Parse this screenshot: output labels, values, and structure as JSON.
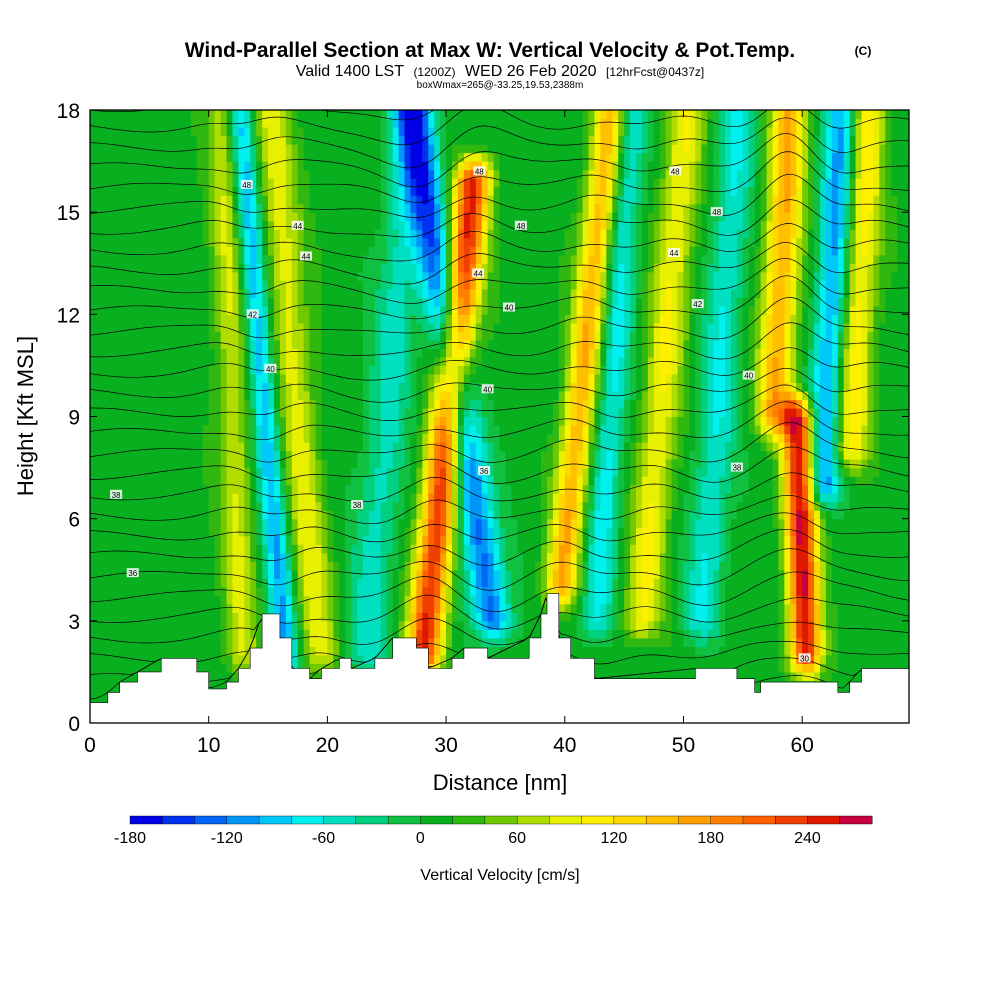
{
  "header": {
    "title": "Wind-Parallel Section at Max W: Vertical Velocity & Pot.Temp.",
    "copyright": "(C)",
    "valid_prefix": "Valid 1400 LST",
    "utc": "(1200Z)",
    "valid_date": "WED 26 Feb 2020",
    "forecast": "[12hrFcst@0437z]",
    "boxinfo": "boxWmax=265@-33.25,19.53,2388m"
  },
  "chart_data": {
    "type": "heatmap",
    "title": "Wind-Parallel Section at Max W: Vertical Velocity & Pot.Temp.",
    "xlabel": "Distance [nm]",
    "ylabel": "Height [Kft MSL]",
    "xlim": [
      0,
      69
    ],
    "ylim": [
      0,
      18
    ],
    "xticks": [
      0,
      10,
      20,
      30,
      40,
      50,
      60
    ],
    "yticks": [
      0,
      3,
      6,
      9,
      12,
      15,
      18
    ],
    "colorbar": {
      "label": "Vertical Velocity [cm/s]",
      "min": -180,
      "max": 280,
      "step": 20,
      "tick_values": [
        -180,
        -120,
        -60,
        0,
        60,
        120,
        180,
        240
      ],
      "colors": [
        "#0000e6",
        "#0030f0",
        "#0064f6",
        "#0096f8",
        "#00c8fa",
        "#00f0f0",
        "#00e0c0",
        "#00d080",
        "#10c040",
        "#08b020",
        "#30b810",
        "#70c800",
        "#b0dc00",
        "#e6f000",
        "#fff000",
        "#ffd800",
        "#ffc000",
        "#ffa000",
        "#ff8000",
        "#ff6000",
        "#f04000",
        "#e01800",
        "#c80040"
      ]
    },
    "wave_bands": [
      {
        "kind": "up",
        "x_base": 12.5,
        "tilt": -0.1,
        "width": 1.4,
        "amp": 70,
        "h_min": 2,
        "h_max": 18
      },
      {
        "kind": "down",
        "x_base": 15.8,
        "tilt": -0.25,
        "width": 1.1,
        "amp": -110,
        "h_min": 1.8,
        "h_max": 18
      },
      {
        "kind": "up",
        "x_base": 18.5,
        "tilt": -0.25,
        "width": 1.6,
        "amp": 80,
        "h_min": 2,
        "h_max": 18
      },
      {
        "kind": "down",
        "x_base": 24,
        "tilt": 0.25,
        "width": 1.8,
        "amp": -60,
        "h_min": 2,
        "h_max": 18
      },
      {
        "kind": "up",
        "x_base": 29,
        "tilt": 0.3,
        "width": 1.5,
        "amp": 230,
        "h_min": 2,
        "h_max": 16
      },
      {
        "kind": "down",
        "x_base": 33,
        "tilt": -0.45,
        "width": 1.6,
        "amp": -140,
        "h_min": 3,
        "h_max": 18
      },
      {
        "kind": "up",
        "x_base": 40,
        "tilt": 0.3,
        "width": 1.4,
        "amp": 150,
        "h_min": 4,
        "h_max": 18
      },
      {
        "kind": "down",
        "x_base": 43,
        "tilt": 0.2,
        "width": 1.4,
        "amp": -80,
        "h_min": 3,
        "h_max": 18
      },
      {
        "kind": "up",
        "x_base": 47,
        "tilt": 0.25,
        "width": 1.6,
        "amp": 90,
        "h_min": 3,
        "h_max": 18
      },
      {
        "kind": "down",
        "x_base": 52,
        "tilt": 0.2,
        "width": 1.6,
        "amp": -70,
        "h_min": 3,
        "h_max": 18
      },
      {
        "kind": "up",
        "x_base": 60,
        "tilt": -0.1,
        "width": 1.3,
        "amp": 250,
        "h_min": 2,
        "h_max": 9
      },
      {
        "kind": "up",
        "x_base": 57,
        "tilt": 0.15,
        "width": 1.5,
        "amp": 150,
        "h_min": 9,
        "h_max": 18
      },
      {
        "kind": "down",
        "x_base": 61.5,
        "tilt": 0.15,
        "width": 1.4,
        "amp": -130,
        "h_min": 7,
        "h_max": 18
      },
      {
        "kind": "up",
        "x_base": 63.5,
        "tilt": 0.15,
        "width": 1.6,
        "amp": 110,
        "h_min": 8,
        "h_max": 18
      }
    ],
    "terrain": [
      {
        "x": 0,
        "h": 0.6
      },
      {
        "x": 1.5,
        "h": 0.9
      },
      {
        "x": 2.5,
        "h": 1.2
      },
      {
        "x": 4,
        "h": 1.5
      },
      {
        "x": 6,
        "h": 1.9
      },
      {
        "x": 9,
        "h": 1.5
      },
      {
        "x": 10,
        "h": 1.0
      },
      {
        "x": 11.5,
        "h": 1.2
      },
      {
        "x": 12.5,
        "h": 1.6
      },
      {
        "x": 13.5,
        "h": 2.2
      },
      {
        "x": 14.5,
        "h": 3.2
      },
      {
        "x": 16,
        "h": 2.5
      },
      {
        "x": 17,
        "h": 1.6
      },
      {
        "x": 18.5,
        "h": 1.3
      },
      {
        "x": 19.5,
        "h": 1.6
      },
      {
        "x": 21,
        "h": 1.9
      },
      {
        "x": 22,
        "h": 1.6
      },
      {
        "x": 24,
        "h": 1.9
      },
      {
        "x": 25.5,
        "h": 2.5
      },
      {
        "x": 27.5,
        "h": 2.2
      },
      {
        "x": 28.5,
        "h": 1.6
      },
      {
        "x": 30.5,
        "h": 1.9
      },
      {
        "x": 31.5,
        "h": 2.2
      },
      {
        "x": 33.5,
        "h": 1.9
      },
      {
        "x": 37,
        "h": 2.5
      },
      {
        "x": 38,
        "h": 3.2
      },
      {
        "x": 38.5,
        "h": 3.8
      },
      {
        "x": 39.5,
        "h": 2.5
      },
      {
        "x": 40.5,
        "h": 1.9
      },
      {
        "x": 42.5,
        "h": 1.3
      },
      {
        "x": 51,
        "h": 1.6
      },
      {
        "x": 54.5,
        "h": 1.3
      },
      {
        "x": 56,
        "h": 0.9
      },
      {
        "x": 56.5,
        "h": 1.2
      },
      {
        "x": 63,
        "h": 0.9
      },
      {
        "x": 64,
        "h": 1.2
      },
      {
        "x": 65,
        "h": 1.6
      },
      {
        "x": 69,
        "h": 1.6
      }
    ],
    "theta_labels": [
      {
        "text": "48",
        "x": 13.2,
        "h": 15.8
      },
      {
        "text": "44",
        "x": 17.5,
        "h": 14.6
      },
      {
        "text": "44",
        "x": 18.2,
        "h": 13.7
      },
      {
        "text": "42",
        "x": 13.7,
        "h": 12.0
      },
      {
        "text": "40",
        "x": 15.2,
        "h": 10.4
      },
      {
        "text": "38",
        "x": 2.2,
        "h": 6.7
      },
      {
        "text": "36",
        "x": 3.6,
        "h": 4.4
      },
      {
        "text": "38",
        "x": 22.5,
        "h": 6.4
      },
      {
        "text": "48",
        "x": 32.8,
        "h": 16.2
      },
      {
        "text": "48",
        "x": 36.3,
        "h": 14.6
      },
      {
        "text": "44",
        "x": 32.7,
        "h": 13.2
      },
      {
        "text": "40",
        "x": 35.3,
        "h": 12.2
      },
      {
        "text": "40",
        "x": 33.5,
        "h": 9.8
      },
      {
        "text": "36",
        "x": 33.2,
        "h": 7.4
      },
      {
        "text": "48",
        "x": 49.3,
        "h": 16.2
      },
      {
        "text": "48",
        "x": 52.8,
        "h": 15.0
      },
      {
        "text": "44",
        "x": 49.2,
        "h": 13.8
      },
      {
        "text": "42",
        "x": 51.2,
        "h": 12.3
      },
      {
        "text": "40",
        "x": 55.5,
        "h": 10.2
      },
      {
        "text": "38",
        "x": 54.5,
        "h": 7.5
      },
      {
        "text": "30",
        "x": 60.2,
        "h": 1.9
      }
    ]
  }
}
